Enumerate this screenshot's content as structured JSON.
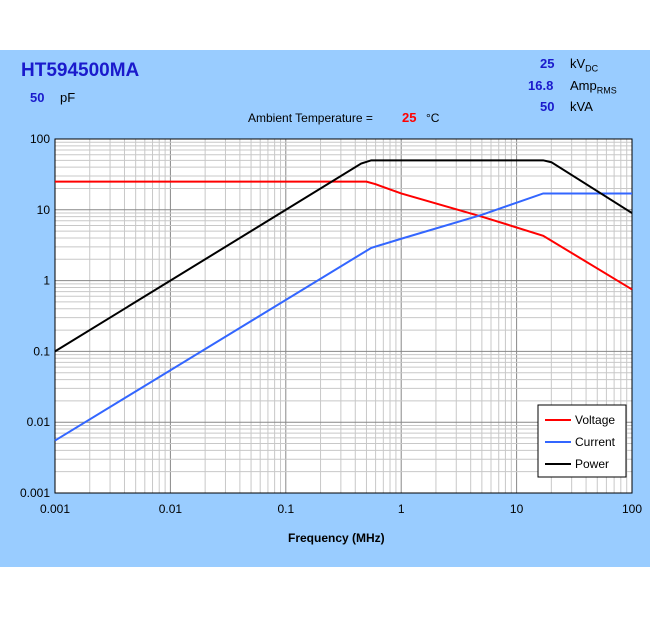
{
  "header": {
    "model": "HT594500MA",
    "capacitance_value": "50",
    "capacitance_unit": "pF",
    "ratings": [
      {
        "value": "25",
        "unit": "kV",
        "sub": "DC"
      },
      {
        "value": "16.8",
        "unit": "Amp",
        "sub": "RMS"
      },
      {
        "value": "50",
        "unit": "kVA",
        "sub": ""
      }
    ],
    "ambient_label": "Ambient Temperature =",
    "ambient_value": "25",
    "ambient_unit": "°C"
  },
  "colors": {
    "panel": "#99ccff",
    "voltage": "#ff0000",
    "current": "#3366ff",
    "power": "#000000",
    "accent": "#1a1acc"
  },
  "chart_data": {
    "type": "line",
    "xlabel": "Frequency (MHz)",
    "ylabel": "",
    "xscale": "log",
    "yscale": "log",
    "xlim": [
      0.001,
      100
    ],
    "ylim": [
      0.001,
      100
    ],
    "grid": true,
    "legend": "bottom-right",
    "xticks": [
      "0.001",
      "0.01",
      "0.1",
      "1",
      "10",
      "100"
    ],
    "yticks": [
      "0.001",
      "0.01",
      "0.1",
      "1",
      "10",
      "100"
    ],
    "series": [
      {
        "name": "Voltage",
        "color": "#ff0000",
        "points": [
          [
            0.001,
            25
          ],
          [
            0.5,
            25
          ],
          [
            0.6,
            23
          ],
          [
            1,
            17
          ],
          [
            5,
            8
          ],
          [
            17,
            4.3
          ],
          [
            100,
            0.75
          ]
        ]
      },
      {
        "name": "Current",
        "color": "#3366ff",
        "points": [
          [
            0.001,
            0.0055
          ],
          [
            0.55,
            2.9
          ],
          [
            1,
            3.9
          ],
          [
            5,
            8.5
          ],
          [
            17,
            17
          ],
          [
            100,
            17
          ]
        ]
      },
      {
        "name": "Power",
        "color": "#000000",
        "points": [
          [
            0.001,
            0.1
          ],
          [
            0.45,
            45
          ],
          [
            0.55,
            50
          ],
          [
            17,
            50
          ],
          [
            20,
            47
          ],
          [
            100,
            9
          ]
        ]
      }
    ]
  }
}
